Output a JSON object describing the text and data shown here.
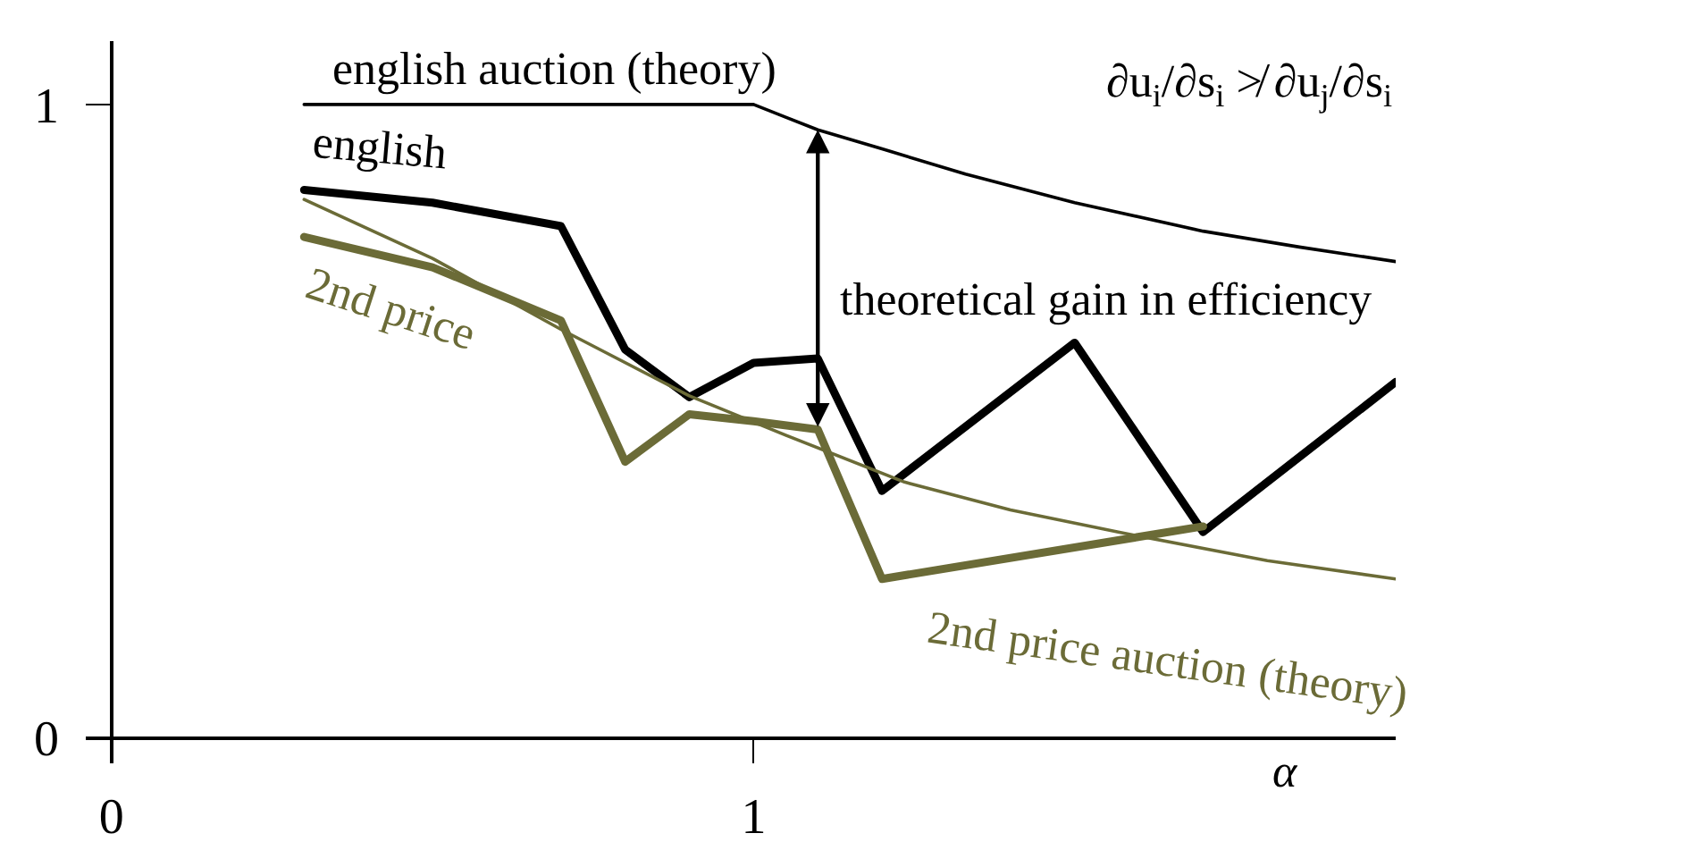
{
  "chart_data": {
    "type": "line",
    "xlabel": "α",
    "xlim": [
      -0.04,
      2.0
    ],
    "xticks": [
      0,
      1
    ],
    "ylim": [
      -0.04,
      1.1
    ],
    "yticks": [
      0,
      1
    ],
    "series": [
      {
        "name": "english auction (theory)",
        "color": "#000000",
        "x": [
          0.3,
          1.0,
          1.05,
          1.1,
          1.2,
          1.33,
          1.5,
          1.7,
          1.85,
          2.0
        ],
        "values": [
          1.0,
          1.0,
          0.98,
          0.96,
          0.93,
          0.89,
          0.845,
          0.8,
          0.775,
          0.752
        ]
      },
      {
        "name": "english",
        "color": "#000000",
        "x": [
          0.3,
          0.5,
          0.7,
          0.8,
          0.9,
          1.0,
          1.1,
          1.2,
          1.5,
          1.7,
          2.0
        ],
        "values": [
          0.865,
          0.845,
          0.808,
          0.613,
          0.538,
          0.592,
          0.599,
          0.39,
          0.624,
          0.325,
          0.562
        ]
      },
      {
        "name": "2nd price",
        "color": "#6b6b37",
        "x": [
          0.3,
          0.5,
          0.7,
          0.8,
          0.9,
          1.0,
          1.1,
          1.2,
          1.7
        ],
        "values": [
          0.791,
          0.743,
          0.659,
          0.436,
          0.511,
          0.5,
          0.487,
          0.251,
          0.334
        ]
      },
      {
        "name": "2nd price auction (theory)",
        "color": "#6b6b37",
        "x": [
          0.3,
          0.5,
          0.7,
          0.9,
          1.05,
          1.235,
          1.4,
          1.568,
          1.8,
          2.0
        ],
        "values": [
          0.85,
          0.757,
          0.645,
          0.54,
          0.478,
          0.404,
          0.36,
          0.325,
          0.28,
          0.251
        ]
      }
    ],
    "annotations": [
      {
        "text": "theoretical gain in efficiency",
        "x": 1.1,
        "y": 0.487
      },
      "∂u$_{i}$/∂s$_{i}$ ≯ ∂u$_{j}$/∂s$_{i}$"
    ]
  }
}
